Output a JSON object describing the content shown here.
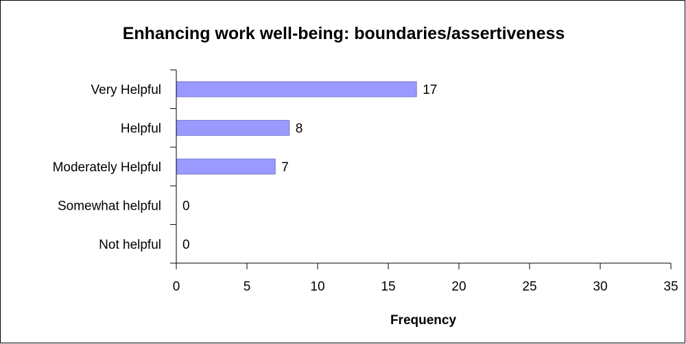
{
  "chart_data": {
    "type": "bar",
    "orientation": "horizontal",
    "title": "Enhancing work well-being: boundaries/assertiveness",
    "xlabel": "Frequency",
    "ylabel": "",
    "categories": [
      "Very Helpful",
      "Helpful",
      "Moderately Helpful",
      "Somewhat helpful",
      "Not helpful"
    ],
    "values": [
      17,
      8,
      7,
      0,
      0
    ],
    "xlim": [
      0,
      35
    ],
    "x_ticks": [
      0,
      5,
      10,
      15,
      20,
      25,
      30,
      35
    ],
    "grid": false,
    "legend": "none",
    "data_labels": true,
    "colors": {
      "bar_fill": "#9999ff",
      "bar_stroke": "#7777cc",
      "axis": "#000000",
      "background": "#ffffff"
    }
  }
}
